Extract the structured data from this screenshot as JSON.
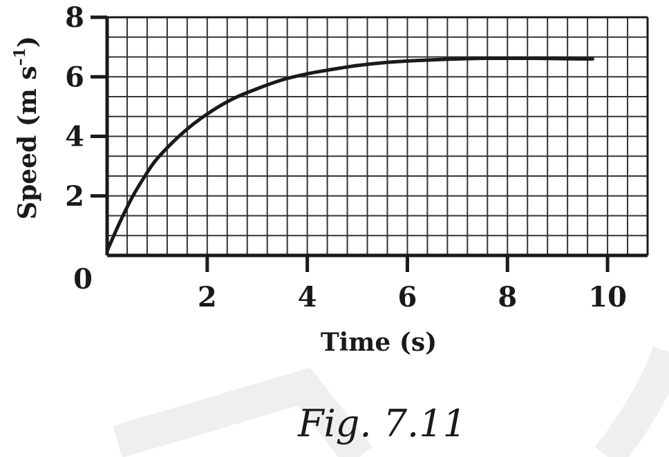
{
  "caption": "Fig. 7.11",
  "chart_data": {
    "type": "line",
    "title": "",
    "xlabel": "Time (s)",
    "ylabel": "Speed (m s",
    "ylabel_superscript": "–1",
    "ylabel_close": ")",
    "xlim": [
      0,
      10.8
    ],
    "ylim": [
      0,
      8
    ],
    "x_ticks": [
      2,
      4,
      6,
      8,
      10
    ],
    "y_ticks": [
      2,
      4,
      6,
      8
    ],
    "origin_label": "0",
    "grid": true,
    "grid_step_x": 0.4,
    "grid_step_y": 0.6667,
    "series": [
      {
        "x": [
          0,
          0.25,
          0.5,
          0.75,
          1.0,
          1.5,
          2.0,
          2.5,
          3.0,
          3.5,
          4.0,
          4.5,
          5.0,
          5.5,
          6.0,
          6.5,
          7.0,
          7.5,
          8.0,
          8.5,
          9.0,
          9.5,
          9.7
        ],
        "y": [
          0.15,
          1.1,
          1.95,
          2.65,
          3.25,
          4.1,
          4.75,
          5.25,
          5.6,
          5.9,
          6.1,
          6.25,
          6.38,
          6.47,
          6.53,
          6.57,
          6.6,
          6.62,
          6.62,
          6.62,
          6.61,
          6.6,
          6.6
        ],
        "color": "#1a1a1a"
      }
    ]
  }
}
